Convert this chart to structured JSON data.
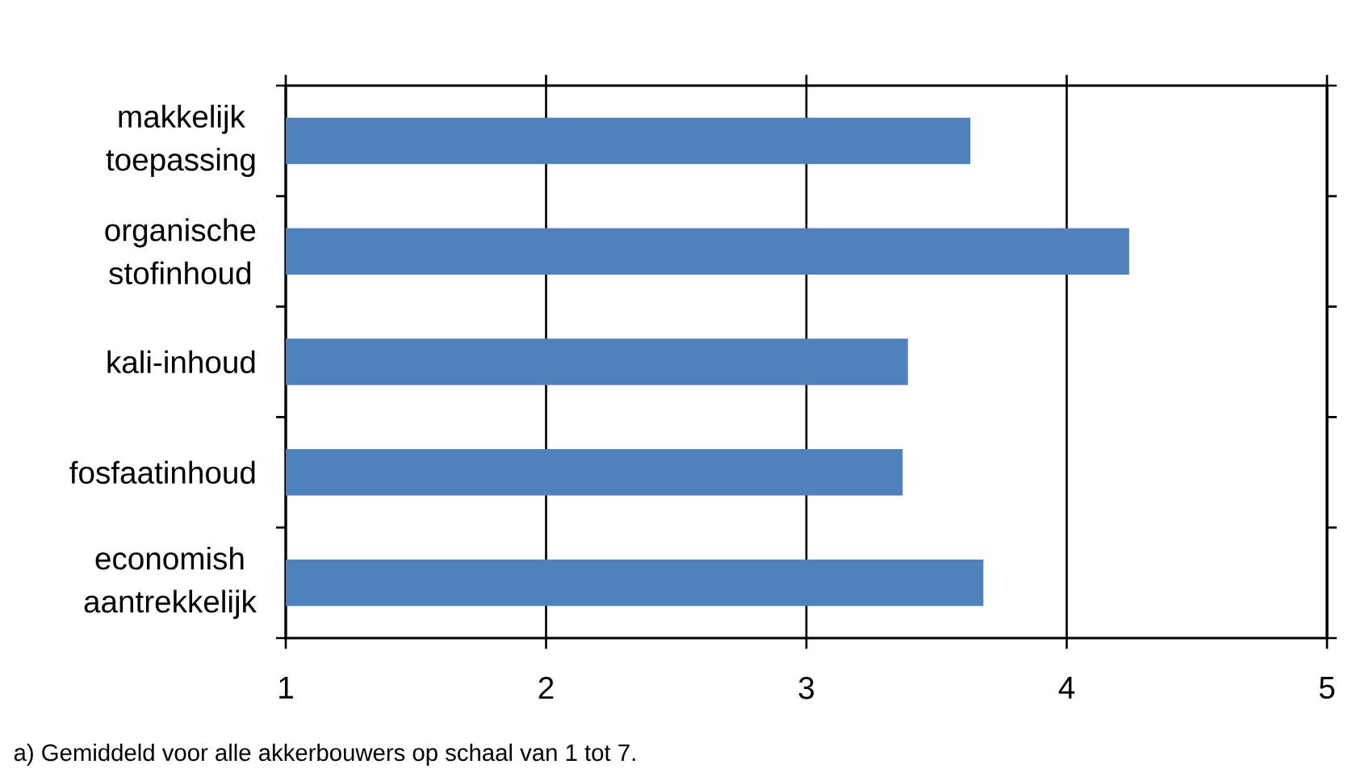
{
  "chart_data": {
    "type": "bar",
    "orientation": "horizontal",
    "categories": [
      "makkelijk toepassing",
      "organische stofinhoud",
      "kali-inhoud",
      "fosfaatinhoud",
      "economish aantrekkelijk"
    ],
    "values": [
      3.63,
      4.24,
      3.39,
      3.37,
      3.68
    ],
    "color": "#4f81bd",
    "xlim": [
      1,
      5
    ],
    "xticks": [
      1,
      2,
      3,
      4,
      5
    ],
    "grid": "x",
    "annotations": [
      "a) Gemiddeld voor alle akkerbouwers op schaal van 1 tot 7."
    ]
  }
}
